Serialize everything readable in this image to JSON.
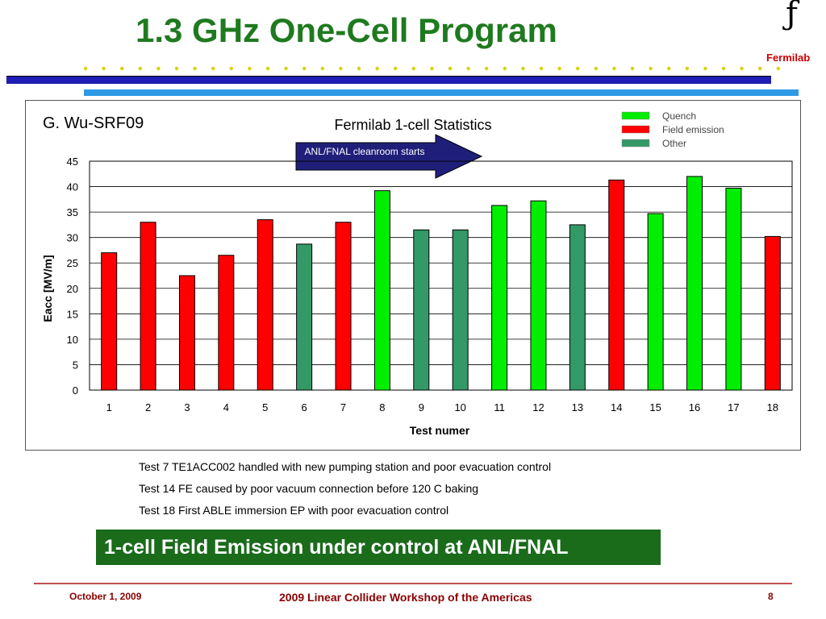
{
  "slide": {
    "title": "1.3 GHz One-Cell Program",
    "logo_text": "Fermilab"
  },
  "chart_data": {
    "type": "bar",
    "title": "Fermilab 1-cell Statistics",
    "source_label": "G. Wu-SRF09",
    "xlabel": "Test numer",
    "ylabel": "Eacc [MV/m]",
    "ylim": [
      0,
      45
    ],
    "yticks": [
      0,
      5,
      10,
      15,
      20,
      25,
      30,
      35,
      40,
      45
    ],
    "categories": [
      "1",
      "2",
      "3",
      "4",
      "5",
      "6",
      "7",
      "8",
      "9",
      "10",
      "11",
      "12",
      "13",
      "14",
      "15",
      "16",
      "17",
      "18"
    ],
    "values": [
      27,
      33,
      22.5,
      26.5,
      33.5,
      28.7,
      33,
      39.2,
      31.5,
      31.5,
      36.3,
      37.2,
      32.5,
      41.3,
      34.7,
      42,
      39.7,
      30.2
    ],
    "categories_type": [
      "Field emission",
      "Field emission",
      "Field emission",
      "Field emission",
      "Field emission",
      "Other",
      "Field emission",
      "Quench",
      "Other",
      "Other",
      "Quench",
      "Quench",
      "Other",
      "Field emission",
      "Quench",
      "Quench",
      "Quench",
      "Field emission"
    ],
    "legend": [
      {
        "name": "Quench",
        "color": "#00ee00"
      },
      {
        "name": "Field emission",
        "color": "#ff0000"
      },
      {
        "name": "Other",
        "color": "#339966"
      }
    ],
    "legend_position": "top-right",
    "grid": true,
    "annotation": "ANL/FNAL cleanroom starts"
  },
  "notes": [
    "Test 7 TE1ACC002 handled with new pumping station and poor evacuation control",
    "Test 14 FE caused by poor vacuum connection before 120 C baking",
    "Test 18 First ABLE immersion EP with poor evacuation control"
  ],
  "banner": "1-cell Field Emission under control at ANL/FNAL",
  "footer": {
    "date": "October 1, 2009",
    "center": "2009 Linear Collider Workshop of the Americas",
    "page": "8"
  }
}
